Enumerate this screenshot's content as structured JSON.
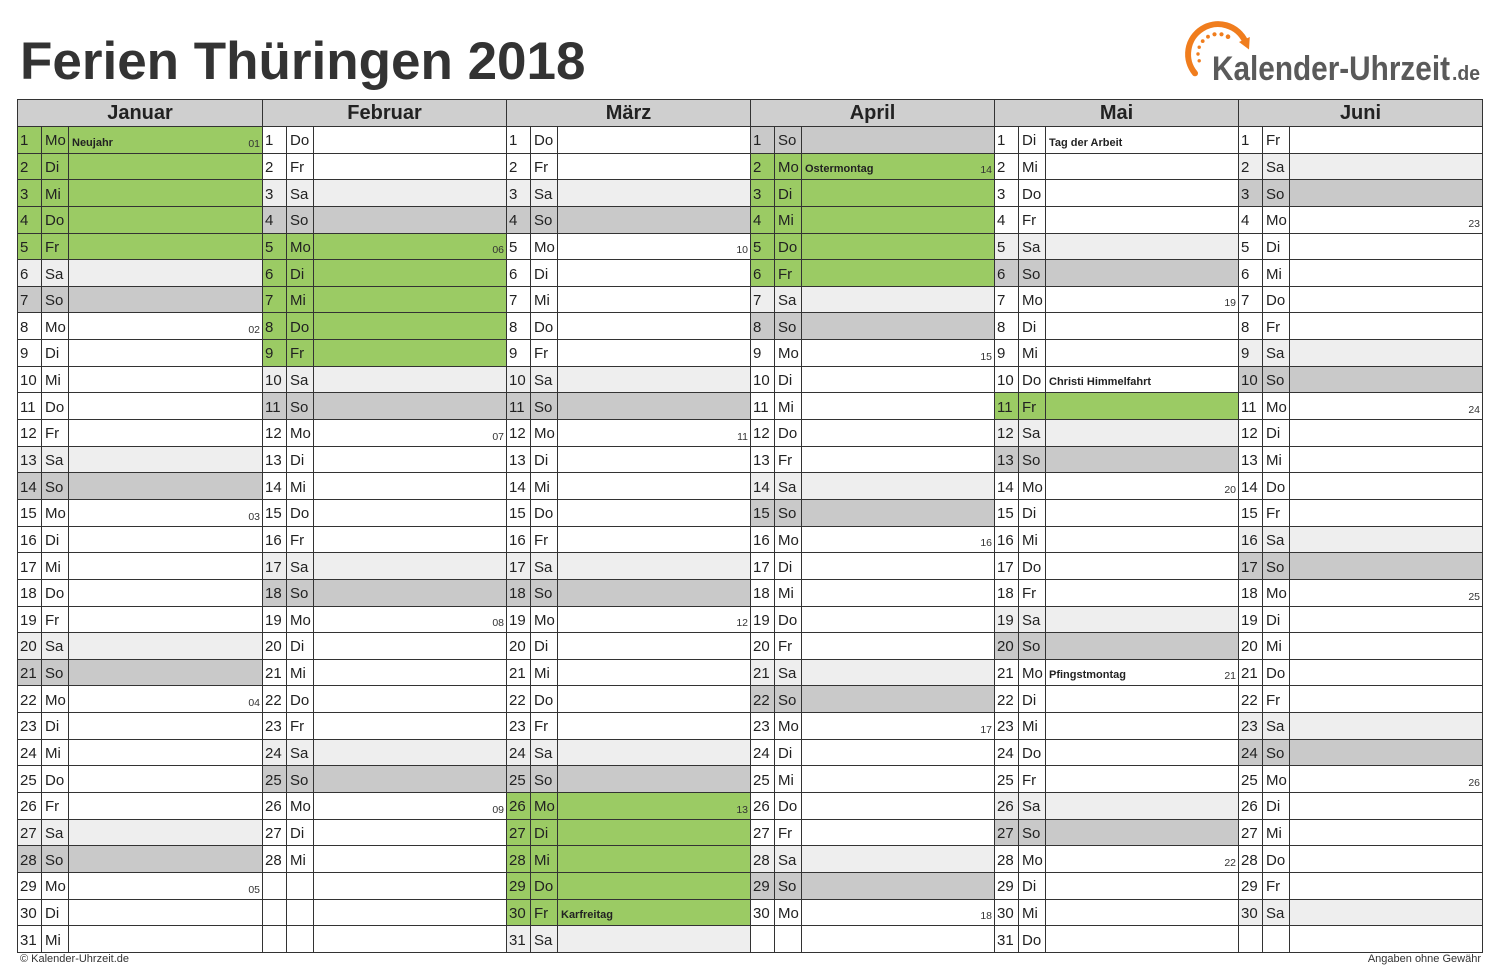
{
  "title": "Ferien Thüringen 2018",
  "logo": {
    "brand": "Kalender-Uhrzeit",
    "tld": ".de",
    "icon": "clock-arrow-icon"
  },
  "footer": {
    "left": "© Kalender-Uhrzeit.de",
    "right": "Angaben ohne Gewähr"
  },
  "colors": {
    "title": "#333333",
    "header": "#CFCFCF",
    "ferien": "#9BCB64",
    "saturday": "#EEEEEE",
    "sunday": "#C9C9C9",
    "logo_orange": "#F07D1D",
    "logo_text": "#5A5A5A"
  },
  "months": [
    {
      "name": "Januar",
      "days": [
        {
          "d": "1",
          "wd": "Mo",
          "note": "Neujahr",
          "kw": "01",
          "ferien": true
        },
        {
          "d": "2",
          "wd": "Di",
          "ferien": true
        },
        {
          "d": "3",
          "wd": "Mi",
          "ferien": true
        },
        {
          "d": "4",
          "wd": "Do",
          "ferien": true
        },
        {
          "d": "5",
          "wd": "Fr",
          "ferien": true
        },
        {
          "d": "6",
          "wd": "Sa"
        },
        {
          "d": "7",
          "wd": "So"
        },
        {
          "d": "8",
          "wd": "Mo",
          "kw": "02"
        },
        {
          "d": "9",
          "wd": "Di"
        },
        {
          "d": "10",
          "wd": "Mi"
        },
        {
          "d": "11",
          "wd": "Do"
        },
        {
          "d": "12",
          "wd": "Fr"
        },
        {
          "d": "13",
          "wd": "Sa"
        },
        {
          "d": "14",
          "wd": "So"
        },
        {
          "d": "15",
          "wd": "Mo",
          "kw": "03"
        },
        {
          "d": "16",
          "wd": "Di"
        },
        {
          "d": "17",
          "wd": "Mi"
        },
        {
          "d": "18",
          "wd": "Do"
        },
        {
          "d": "19",
          "wd": "Fr"
        },
        {
          "d": "20",
          "wd": "Sa"
        },
        {
          "d": "21",
          "wd": "So"
        },
        {
          "d": "22",
          "wd": "Mo",
          "kw": "04"
        },
        {
          "d": "23",
          "wd": "Di"
        },
        {
          "d": "24",
          "wd": "Mi"
        },
        {
          "d": "25",
          "wd": "Do"
        },
        {
          "d": "26",
          "wd": "Fr"
        },
        {
          "d": "27",
          "wd": "Sa"
        },
        {
          "d": "28",
          "wd": "So"
        },
        {
          "d": "29",
          "wd": "Mo",
          "kw": "05"
        },
        {
          "d": "30",
          "wd": "Di"
        },
        {
          "d": "31",
          "wd": "Mi"
        }
      ]
    },
    {
      "name": "Februar",
      "days": [
        {
          "d": "1",
          "wd": "Do"
        },
        {
          "d": "2",
          "wd": "Fr"
        },
        {
          "d": "3",
          "wd": "Sa"
        },
        {
          "d": "4",
          "wd": "So"
        },
        {
          "d": "5",
          "wd": "Mo",
          "kw": "06",
          "ferien": true
        },
        {
          "d": "6",
          "wd": "Di",
          "ferien": true
        },
        {
          "d": "7",
          "wd": "Mi",
          "ferien": true
        },
        {
          "d": "8",
          "wd": "Do",
          "ferien": true
        },
        {
          "d": "9",
          "wd": "Fr",
          "ferien": true
        },
        {
          "d": "10",
          "wd": "Sa"
        },
        {
          "d": "11",
          "wd": "So"
        },
        {
          "d": "12",
          "wd": "Mo",
          "kw": "07"
        },
        {
          "d": "13",
          "wd": "Di"
        },
        {
          "d": "14",
          "wd": "Mi"
        },
        {
          "d": "15",
          "wd": "Do"
        },
        {
          "d": "16",
          "wd": "Fr"
        },
        {
          "d": "17",
          "wd": "Sa"
        },
        {
          "d": "18",
          "wd": "So"
        },
        {
          "d": "19",
          "wd": "Mo",
          "kw": "08"
        },
        {
          "d": "20",
          "wd": "Di"
        },
        {
          "d": "21",
          "wd": "Mi"
        },
        {
          "d": "22",
          "wd": "Do"
        },
        {
          "d": "23",
          "wd": "Fr"
        },
        {
          "d": "24",
          "wd": "Sa"
        },
        {
          "d": "25",
          "wd": "So"
        },
        {
          "d": "26",
          "wd": "Mo",
          "kw": "09"
        },
        {
          "d": "27",
          "wd": "Di"
        },
        {
          "d": "28",
          "wd": "Mi"
        }
      ]
    },
    {
      "name": "März",
      "days": [
        {
          "d": "1",
          "wd": "Do"
        },
        {
          "d": "2",
          "wd": "Fr"
        },
        {
          "d": "3",
          "wd": "Sa"
        },
        {
          "d": "4",
          "wd": "So"
        },
        {
          "d": "5",
          "wd": "Mo",
          "kw": "10"
        },
        {
          "d": "6",
          "wd": "Di"
        },
        {
          "d": "7",
          "wd": "Mi"
        },
        {
          "d": "8",
          "wd": "Do"
        },
        {
          "d": "9",
          "wd": "Fr"
        },
        {
          "d": "10",
          "wd": "Sa"
        },
        {
          "d": "11",
          "wd": "So"
        },
        {
          "d": "12",
          "wd": "Mo",
          "kw": "11"
        },
        {
          "d": "13",
          "wd": "Di"
        },
        {
          "d": "14",
          "wd": "Mi"
        },
        {
          "d": "15",
          "wd": "Do"
        },
        {
          "d": "16",
          "wd": "Fr"
        },
        {
          "d": "17",
          "wd": "Sa"
        },
        {
          "d": "18",
          "wd": "So"
        },
        {
          "d": "19",
          "wd": "Mo",
          "kw": "12"
        },
        {
          "d": "20",
          "wd": "Di"
        },
        {
          "d": "21",
          "wd": "Mi"
        },
        {
          "d": "22",
          "wd": "Do"
        },
        {
          "d": "23",
          "wd": "Fr"
        },
        {
          "d": "24",
          "wd": "Sa"
        },
        {
          "d": "25",
          "wd": "So"
        },
        {
          "d": "26",
          "wd": "Mo",
          "kw": "13",
          "ferien": true
        },
        {
          "d": "27",
          "wd": "Di",
          "ferien": true
        },
        {
          "d": "28",
          "wd": "Mi",
          "ferien": true
        },
        {
          "d": "29",
          "wd": "Do",
          "ferien": true
        },
        {
          "d": "30",
          "wd": "Fr",
          "note": "Karfreitag",
          "ferien": true
        },
        {
          "d": "31",
          "wd": "Sa"
        }
      ]
    },
    {
      "name": "April",
      "days": [
        {
          "d": "1",
          "wd": "So"
        },
        {
          "d": "2",
          "wd": "Mo",
          "note": "Ostermontag",
          "kw": "14",
          "ferien": true
        },
        {
          "d": "3",
          "wd": "Di",
          "ferien": true
        },
        {
          "d": "4",
          "wd": "Mi",
          "ferien": true
        },
        {
          "d": "5",
          "wd": "Do",
          "ferien": true
        },
        {
          "d": "6",
          "wd": "Fr",
          "ferien": true
        },
        {
          "d": "7",
          "wd": "Sa"
        },
        {
          "d": "8",
          "wd": "So"
        },
        {
          "d": "9",
          "wd": "Mo",
          "kw": "15"
        },
        {
          "d": "10",
          "wd": "Di"
        },
        {
          "d": "11",
          "wd": "Mi"
        },
        {
          "d": "12",
          "wd": "Do"
        },
        {
          "d": "13",
          "wd": "Fr"
        },
        {
          "d": "14",
          "wd": "Sa"
        },
        {
          "d": "15",
          "wd": "So"
        },
        {
          "d": "16",
          "wd": "Mo",
          "kw": "16"
        },
        {
          "d": "17",
          "wd": "Di"
        },
        {
          "d": "18",
          "wd": "Mi"
        },
        {
          "d": "19",
          "wd": "Do"
        },
        {
          "d": "20",
          "wd": "Fr"
        },
        {
          "d": "21",
          "wd": "Sa"
        },
        {
          "d": "22",
          "wd": "So"
        },
        {
          "d": "23",
          "wd": "Mo",
          "kw": "17"
        },
        {
          "d": "24",
          "wd": "Di"
        },
        {
          "d": "25",
          "wd": "Mi"
        },
        {
          "d": "26",
          "wd": "Do"
        },
        {
          "d": "27",
          "wd": "Fr"
        },
        {
          "d": "28",
          "wd": "Sa"
        },
        {
          "d": "29",
          "wd": "So"
        },
        {
          "d": "30",
          "wd": "Mo",
          "kw": "18"
        }
      ]
    },
    {
      "name": "Mai",
      "days": [
        {
          "d": "1",
          "wd": "Di",
          "note": "Tag der Arbeit"
        },
        {
          "d": "2",
          "wd": "Mi"
        },
        {
          "d": "3",
          "wd": "Do"
        },
        {
          "d": "4",
          "wd": "Fr"
        },
        {
          "d": "5",
          "wd": "Sa"
        },
        {
          "d": "6",
          "wd": "So"
        },
        {
          "d": "7",
          "wd": "Mo",
          "kw": "19"
        },
        {
          "d": "8",
          "wd": "Di"
        },
        {
          "d": "9",
          "wd": "Mi"
        },
        {
          "d": "10",
          "wd": "Do",
          "note": "Christi Himmelfahrt"
        },
        {
          "d": "11",
          "wd": "Fr",
          "ferien": true
        },
        {
          "d": "12",
          "wd": "Sa"
        },
        {
          "d": "13",
          "wd": "So"
        },
        {
          "d": "14",
          "wd": "Mo",
          "kw": "20"
        },
        {
          "d": "15",
          "wd": "Di"
        },
        {
          "d": "16",
          "wd": "Mi"
        },
        {
          "d": "17",
          "wd": "Do"
        },
        {
          "d": "18",
          "wd": "Fr"
        },
        {
          "d": "19",
          "wd": "Sa"
        },
        {
          "d": "20",
          "wd": "So"
        },
        {
          "d": "21",
          "wd": "Mo",
          "note": "Pfingstmontag",
          "kw": "21"
        },
        {
          "d": "22",
          "wd": "Di"
        },
        {
          "d": "23",
          "wd": "Mi"
        },
        {
          "d": "24",
          "wd": "Do"
        },
        {
          "d": "25",
          "wd": "Fr"
        },
        {
          "d": "26",
          "wd": "Sa"
        },
        {
          "d": "27",
          "wd": "So"
        },
        {
          "d": "28",
          "wd": "Mo",
          "kw": "22"
        },
        {
          "d": "29",
          "wd": "Di"
        },
        {
          "d": "30",
          "wd": "Mi"
        },
        {
          "d": "31",
          "wd": "Do"
        }
      ]
    },
    {
      "name": "Juni",
      "days": [
        {
          "d": "1",
          "wd": "Fr"
        },
        {
          "d": "2",
          "wd": "Sa"
        },
        {
          "d": "3",
          "wd": "So"
        },
        {
          "d": "4",
          "wd": "Mo",
          "kw": "23"
        },
        {
          "d": "5",
          "wd": "Di"
        },
        {
          "d": "6",
          "wd": "Mi"
        },
        {
          "d": "7",
          "wd": "Do"
        },
        {
          "d": "8",
          "wd": "Fr"
        },
        {
          "d": "9",
          "wd": "Sa"
        },
        {
          "d": "10",
          "wd": "So"
        },
        {
          "d": "11",
          "wd": "Mo",
          "kw": "24"
        },
        {
          "d": "12",
          "wd": "Di"
        },
        {
          "d": "13",
          "wd": "Mi"
        },
        {
          "d": "14",
          "wd": "Do"
        },
        {
          "d": "15",
          "wd": "Fr"
        },
        {
          "d": "16",
          "wd": "Sa"
        },
        {
          "d": "17",
          "wd": "So"
        },
        {
          "d": "18",
          "wd": "Mo",
          "kw": "25"
        },
        {
          "d": "19",
          "wd": "Di"
        },
        {
          "d": "20",
          "wd": "Mi"
        },
        {
          "d": "21",
          "wd": "Do"
        },
        {
          "d": "22",
          "wd": "Fr"
        },
        {
          "d": "23",
          "wd": "Sa"
        },
        {
          "d": "24",
          "wd": "So"
        },
        {
          "d": "25",
          "wd": "Mo",
          "kw": "26"
        },
        {
          "d": "26",
          "wd": "Di"
        },
        {
          "d": "27",
          "wd": "Mi"
        },
        {
          "d": "28",
          "wd": "Do"
        },
        {
          "d": "29",
          "wd": "Fr"
        },
        {
          "d": "30",
          "wd": "Sa"
        }
      ]
    }
  ]
}
